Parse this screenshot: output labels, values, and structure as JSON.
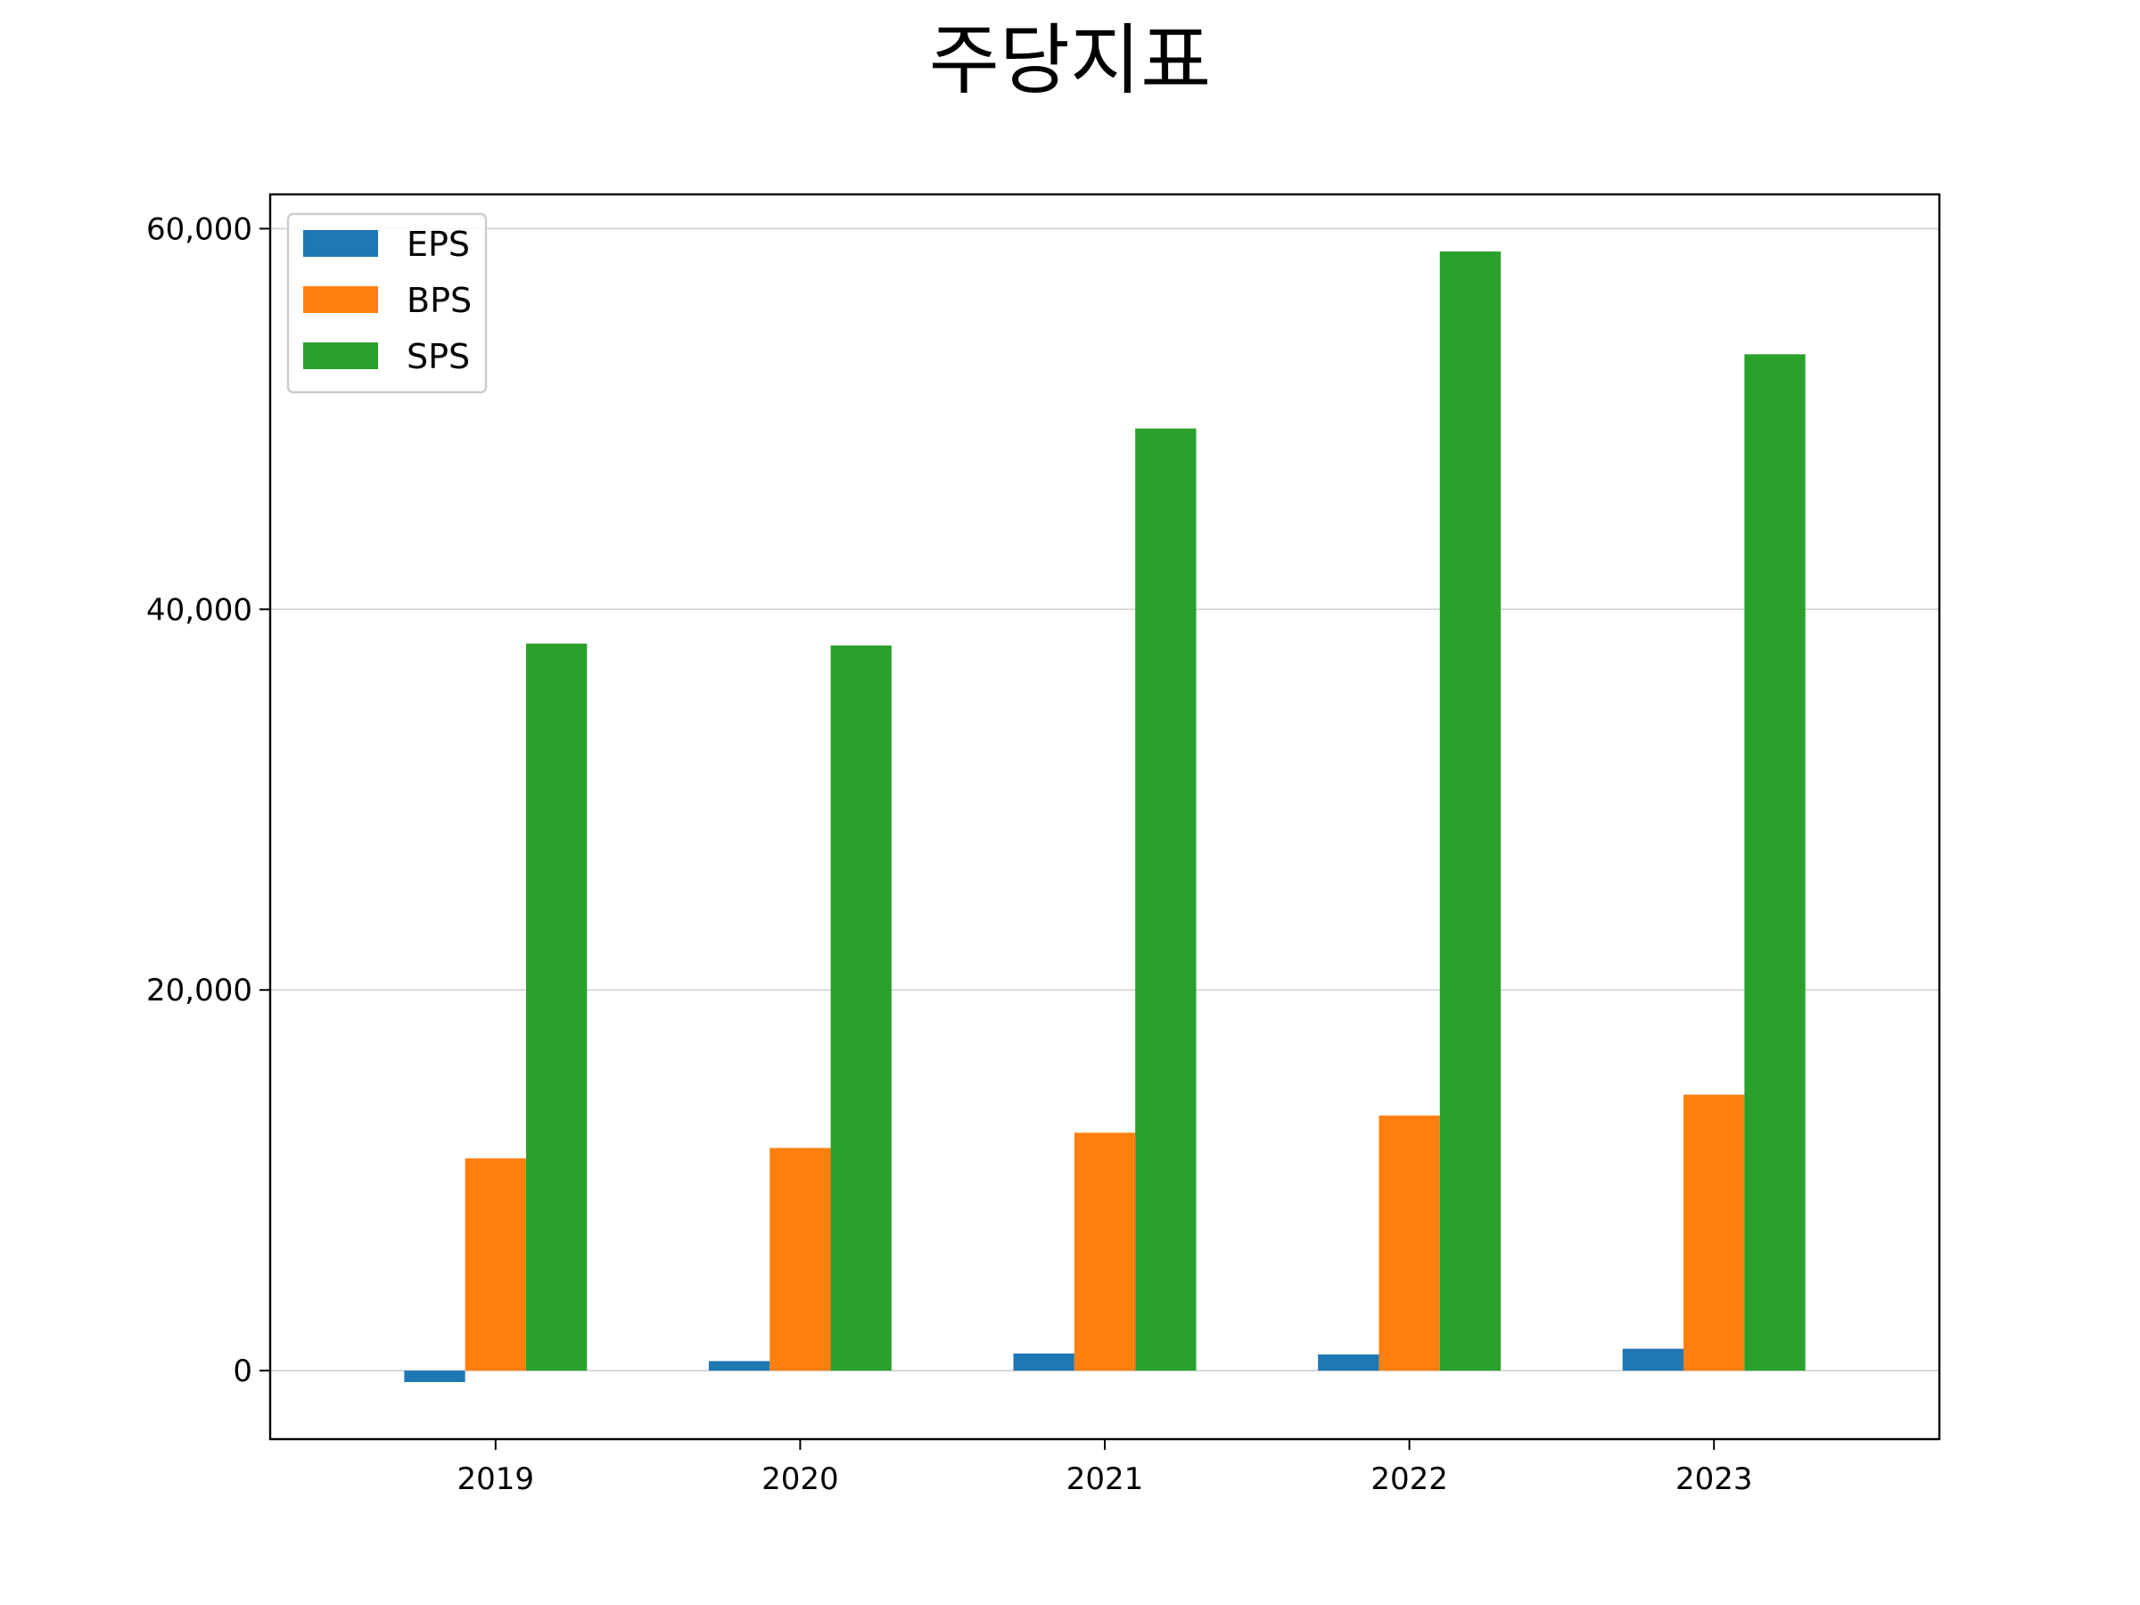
{
  "chart_data": {
    "type": "bar",
    "title": "주당지표",
    "categories": [
      "2019",
      "2020",
      "2021",
      "2022",
      "2023"
    ],
    "series": [
      {
        "name": "EPS",
        "color": "#1f77b4",
        "values": [
          -600,
          500,
          900,
          850,
          1150
        ]
      },
      {
        "name": "BPS",
        "color": "#ff7f0e",
        "values": [
          11150,
          11700,
          12500,
          13400,
          14500
        ]
      },
      {
        "name": "SPS",
        "color": "#2ca02c",
        "values": [
          38200,
          38100,
          49500,
          58800,
          53400
        ]
      }
    ],
    "yticks": [
      0,
      20000,
      40000,
      60000
    ],
    "ytick_labels": [
      "0",
      "20,000",
      "40,000",
      "60,000"
    ],
    "ylim": [
      -3600,
      61800
    ],
    "xlabel": "",
    "ylabel": "",
    "grid": "y",
    "legend_position": "top-left"
  }
}
